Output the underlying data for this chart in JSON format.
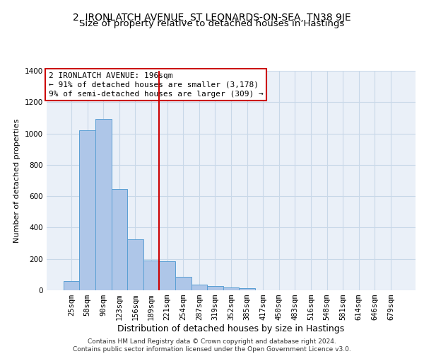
{
  "title": "2, IRONLATCH AVENUE, ST LEONARDS-ON-SEA, TN38 9JE",
  "subtitle": "Size of property relative to detached houses in Hastings",
  "xlabel": "Distribution of detached houses by size in Hastings",
  "ylabel": "Number of detached properties",
  "categories": [
    "25sqm",
    "58sqm",
    "90sqm",
    "123sqm",
    "156sqm",
    "189sqm",
    "221sqm",
    "254sqm",
    "287sqm",
    "319sqm",
    "352sqm",
    "385sqm",
    "417sqm",
    "450sqm",
    "483sqm",
    "516sqm",
    "548sqm",
    "581sqm",
    "614sqm",
    "646sqm",
    "679sqm"
  ],
  "values": [
    57,
    1020,
    1095,
    645,
    325,
    190,
    185,
    85,
    35,
    25,
    20,
    13,
    0,
    0,
    0,
    0,
    0,
    0,
    0,
    0,
    0
  ],
  "bar_color": "#aec6e8",
  "bar_edge_color": "#5a9fd4",
  "vline_x_index": 6,
  "vline_color": "#cc0000",
  "annotation_text": "2 IRONLATCH AVENUE: 196sqm\n← 91% of detached houses are smaller (3,178)\n9% of semi-detached houses are larger (309) →",
  "annotation_box_color": "#ffffff",
  "annotation_box_edge_color": "#cc0000",
  "ylim": [
    0,
    1400
  ],
  "yticks": [
    0,
    200,
    400,
    600,
    800,
    1000,
    1200,
    1400
  ],
  "grid_color": "#c8d8e8",
  "background_color": "#eaf0f8",
  "footer": "Contains HM Land Registry data © Crown copyright and database right 2024.\nContains public sector information licensed under the Open Government Licence v3.0.",
  "title_fontsize": 10,
  "subtitle_fontsize": 9.5,
  "xlabel_fontsize": 9,
  "ylabel_fontsize": 8,
  "tick_fontsize": 7.5,
  "annotation_fontsize": 8,
  "footer_fontsize": 6.5
}
